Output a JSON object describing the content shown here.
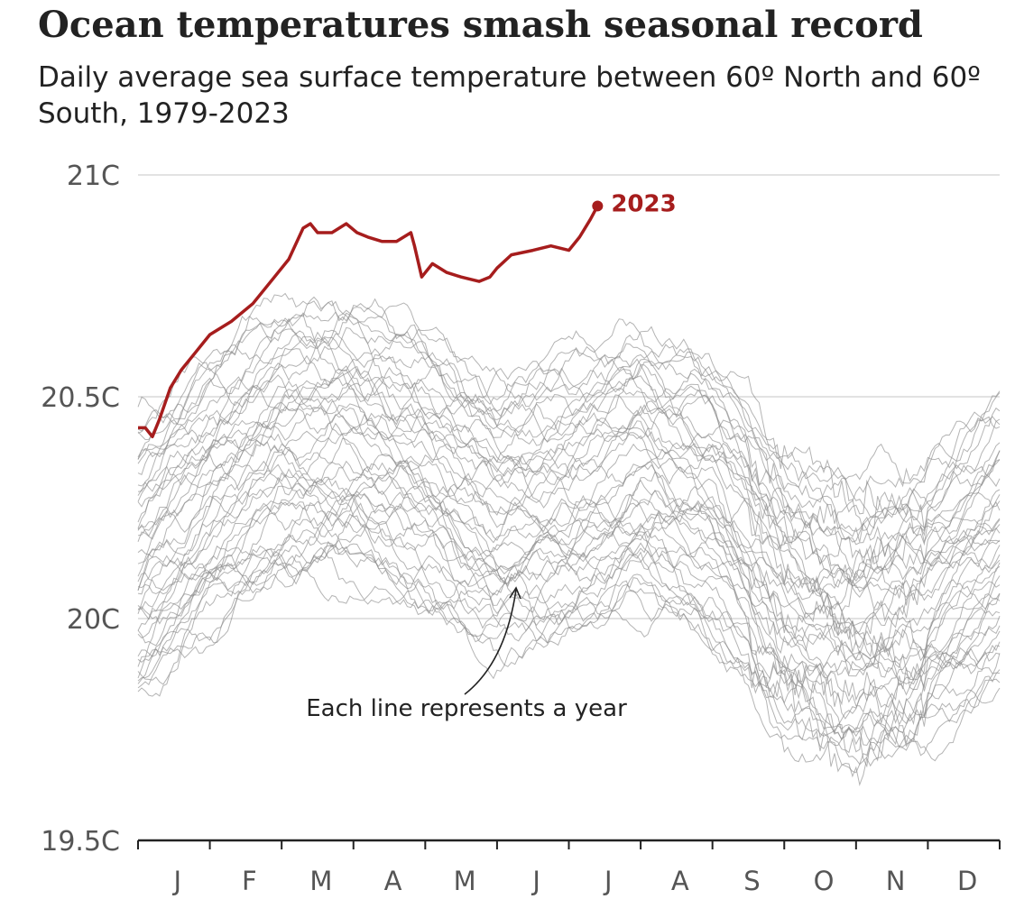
{
  "title": "Ocean temperatures smash seasonal record",
  "subtitle": "Daily average sea surface temperature between 60º North and 60º South, 1979-2023",
  "colors": {
    "highlight": "#a61d1d",
    "history": "#8c8c8c",
    "grid": "#d0d0d0",
    "axis": "#222222"
  },
  "chart_data": {
    "type": "line",
    "title": "Ocean temperatures smash seasonal record",
    "ylim": [
      19.5,
      21.0
    ],
    "yticks": [
      {
        "value": 21.0,
        "label": "21C"
      },
      {
        "value": 20.5,
        "label": "20.5C"
      },
      {
        "value": 20.0,
        "label": "20C"
      },
      {
        "value": 19.5,
        "label": "19.5C"
      }
    ],
    "x_categories": [
      "J",
      "F",
      "M",
      "A",
      "M",
      "J",
      "J",
      "A",
      "S",
      "O",
      "N",
      "D"
    ],
    "grid": true,
    "annotation": "Each line represents a year",
    "highlight_series": {
      "name": "2023",
      "x_month": [
        0.0,
        0.1,
        0.2,
        0.3,
        0.45,
        0.6,
        0.8,
        1.0,
        1.3,
        1.6,
        1.9,
        2.1,
        2.3,
        2.4,
        2.5,
        2.7,
        2.9,
        3.05,
        3.2,
        3.4,
        3.6,
        3.8,
        3.85,
        3.95,
        4.1,
        4.3,
        4.5,
        4.75,
        4.9,
        5.0,
        5.2,
        5.5,
        5.75,
        6.0,
        6.15,
        6.3,
        6.4
      ],
      "values": [
        20.43,
        20.43,
        20.41,
        20.45,
        20.52,
        20.56,
        20.6,
        20.64,
        20.67,
        20.71,
        20.77,
        20.81,
        20.88,
        20.89,
        20.87,
        20.87,
        20.89,
        20.87,
        20.86,
        20.85,
        20.85,
        20.87,
        20.84,
        20.77,
        20.8,
        20.78,
        20.77,
        20.76,
        20.77,
        20.79,
        20.82,
        20.83,
        20.84,
        20.83,
        20.86,
        20.9,
        20.93
      ]
    },
    "history_series": {
      "count": 44,
      "x_month": [
        0,
        1,
        2,
        3,
        4,
        5,
        6,
        7,
        8,
        9,
        10,
        11,
        12
      ],
      "mean_values": [
        20.12,
        20.28,
        20.38,
        20.4,
        20.33,
        20.23,
        20.26,
        20.34,
        20.26,
        20.07,
        19.99,
        20.04,
        20.16
      ],
      "spread": 0.2
    }
  }
}
